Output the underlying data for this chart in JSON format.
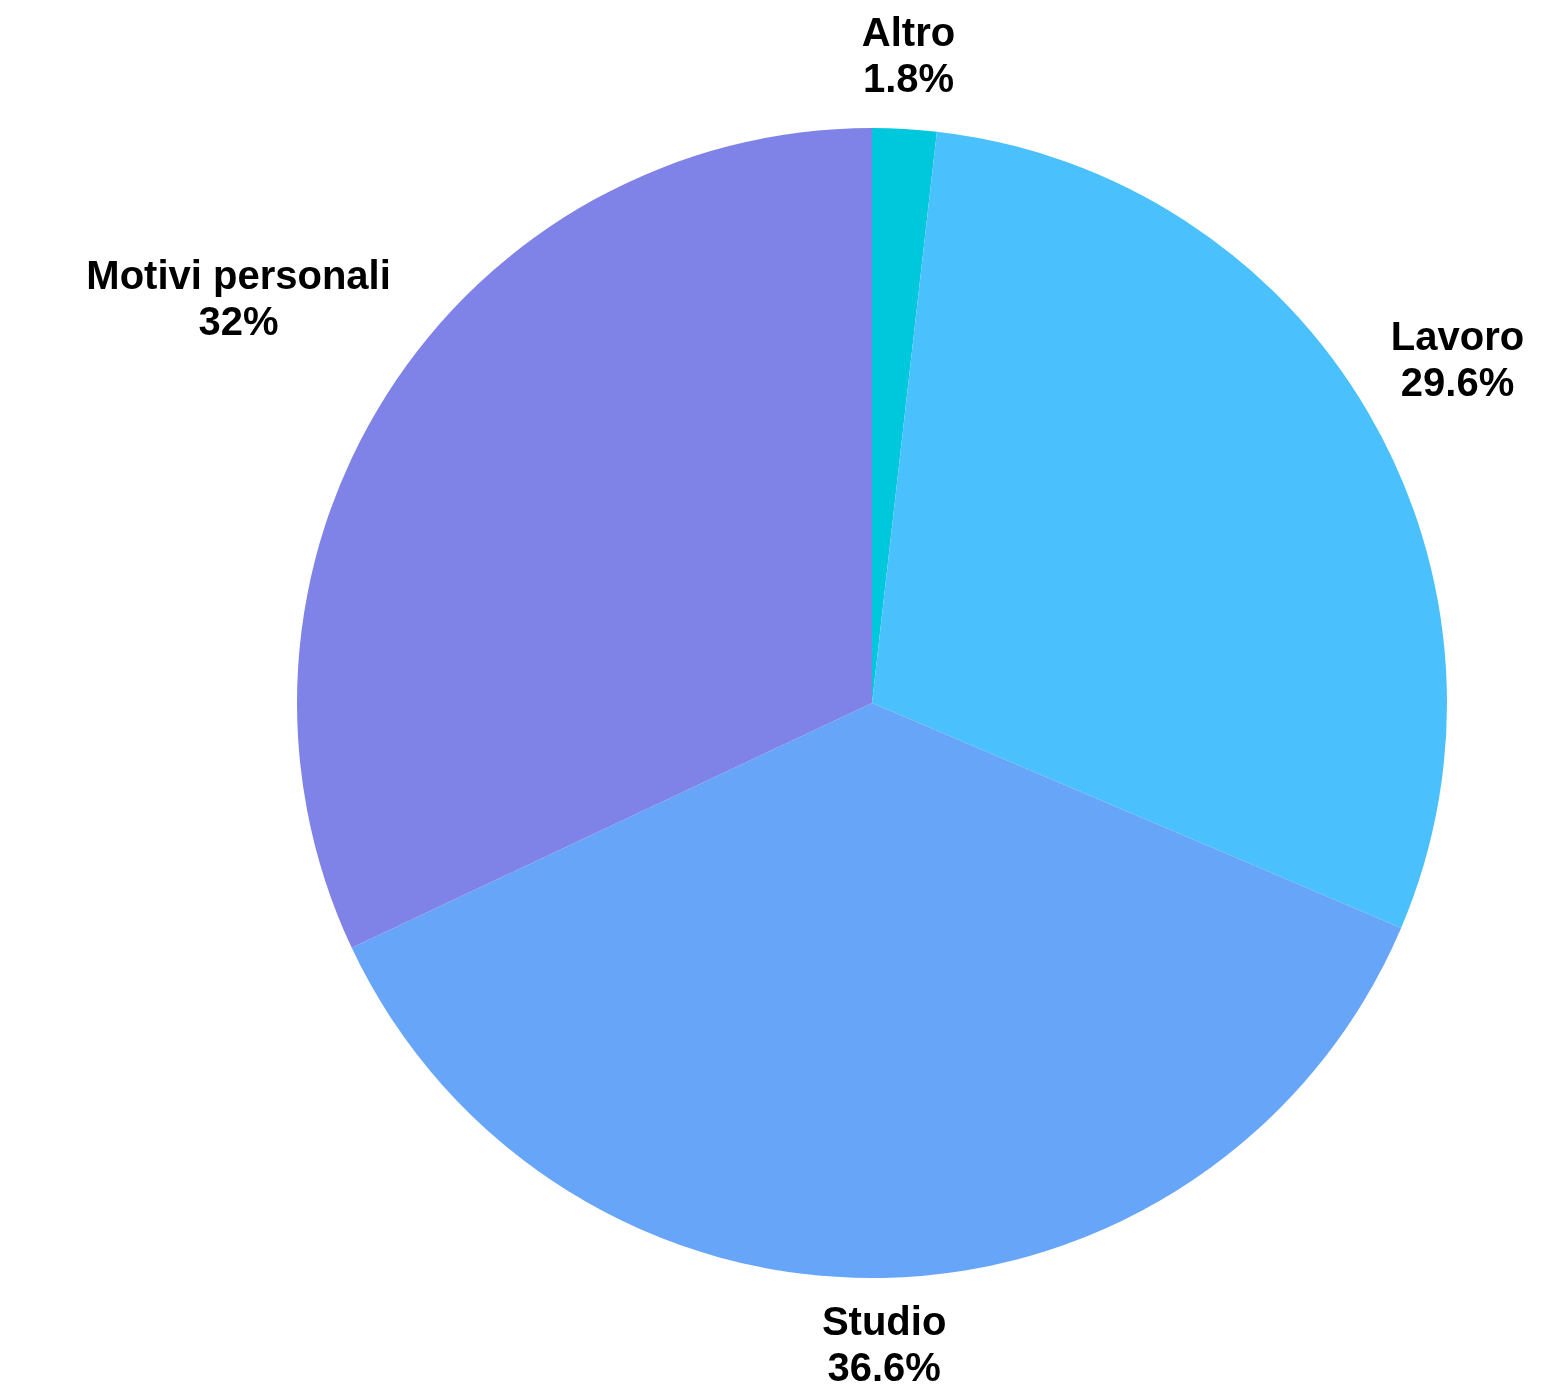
{
  "chart_data": {
    "type": "pie",
    "categories": [
      "Altro",
      "Lavoro",
      "Studio",
      "Motivi personali"
    ],
    "values": [
      1.8,
      29.6,
      36.6,
      32
    ],
    "colors": [
      "#00c8dc",
      "#4ac1fc",
      "#66a5f8",
      "#7f82e6"
    ],
    "value_labels": [
      "1.8%",
      "29.6%",
      "36.6%",
      "32%"
    ],
    "legend": false
  }
}
